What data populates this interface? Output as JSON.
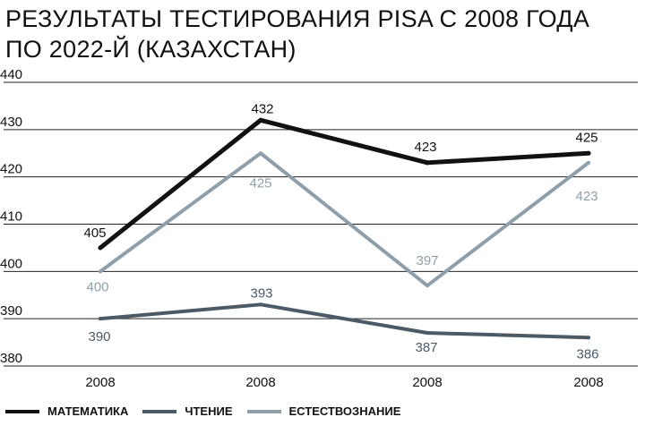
{
  "colors": {
    "math": "#111111",
    "reading": "#4a5b67",
    "science": "#8f9faa",
    "grid": "#222222"
  },
  "chart_data": {
    "type": "line",
    "title_line1": "РЕЗУЛЬТАТЫ ТЕСТИРОВАНИЯ PISA С 2008 ГОДА",
    "title_line2": "ПО 2022-Й (КАЗАХСТАН)",
    "categories": [
      "2008",
      "2008",
      "2008",
      "2008"
    ],
    "ylim": [
      380,
      440
    ],
    "yticks": [
      380,
      390,
      400,
      410,
      420,
      430,
      440
    ],
    "grid": "horizontal",
    "legend_position": "bottom",
    "series": [
      {
        "key": "math",
        "name": "МАТЕМАТИКА",
        "values": [
          405,
          432,
          423,
          425
        ],
        "labels_side": "above"
      },
      {
        "key": "reading",
        "name": "ЧТЕНИЕ",
        "values": [
          390,
          393,
          387,
          386
        ],
        "labels_side": "mixed"
      },
      {
        "key": "science",
        "name": "ЕСТЕСТВОЗНАНИЕ",
        "values": [
          400,
          425,
          397,
          423
        ],
        "labels_side": "mixed"
      }
    ]
  }
}
